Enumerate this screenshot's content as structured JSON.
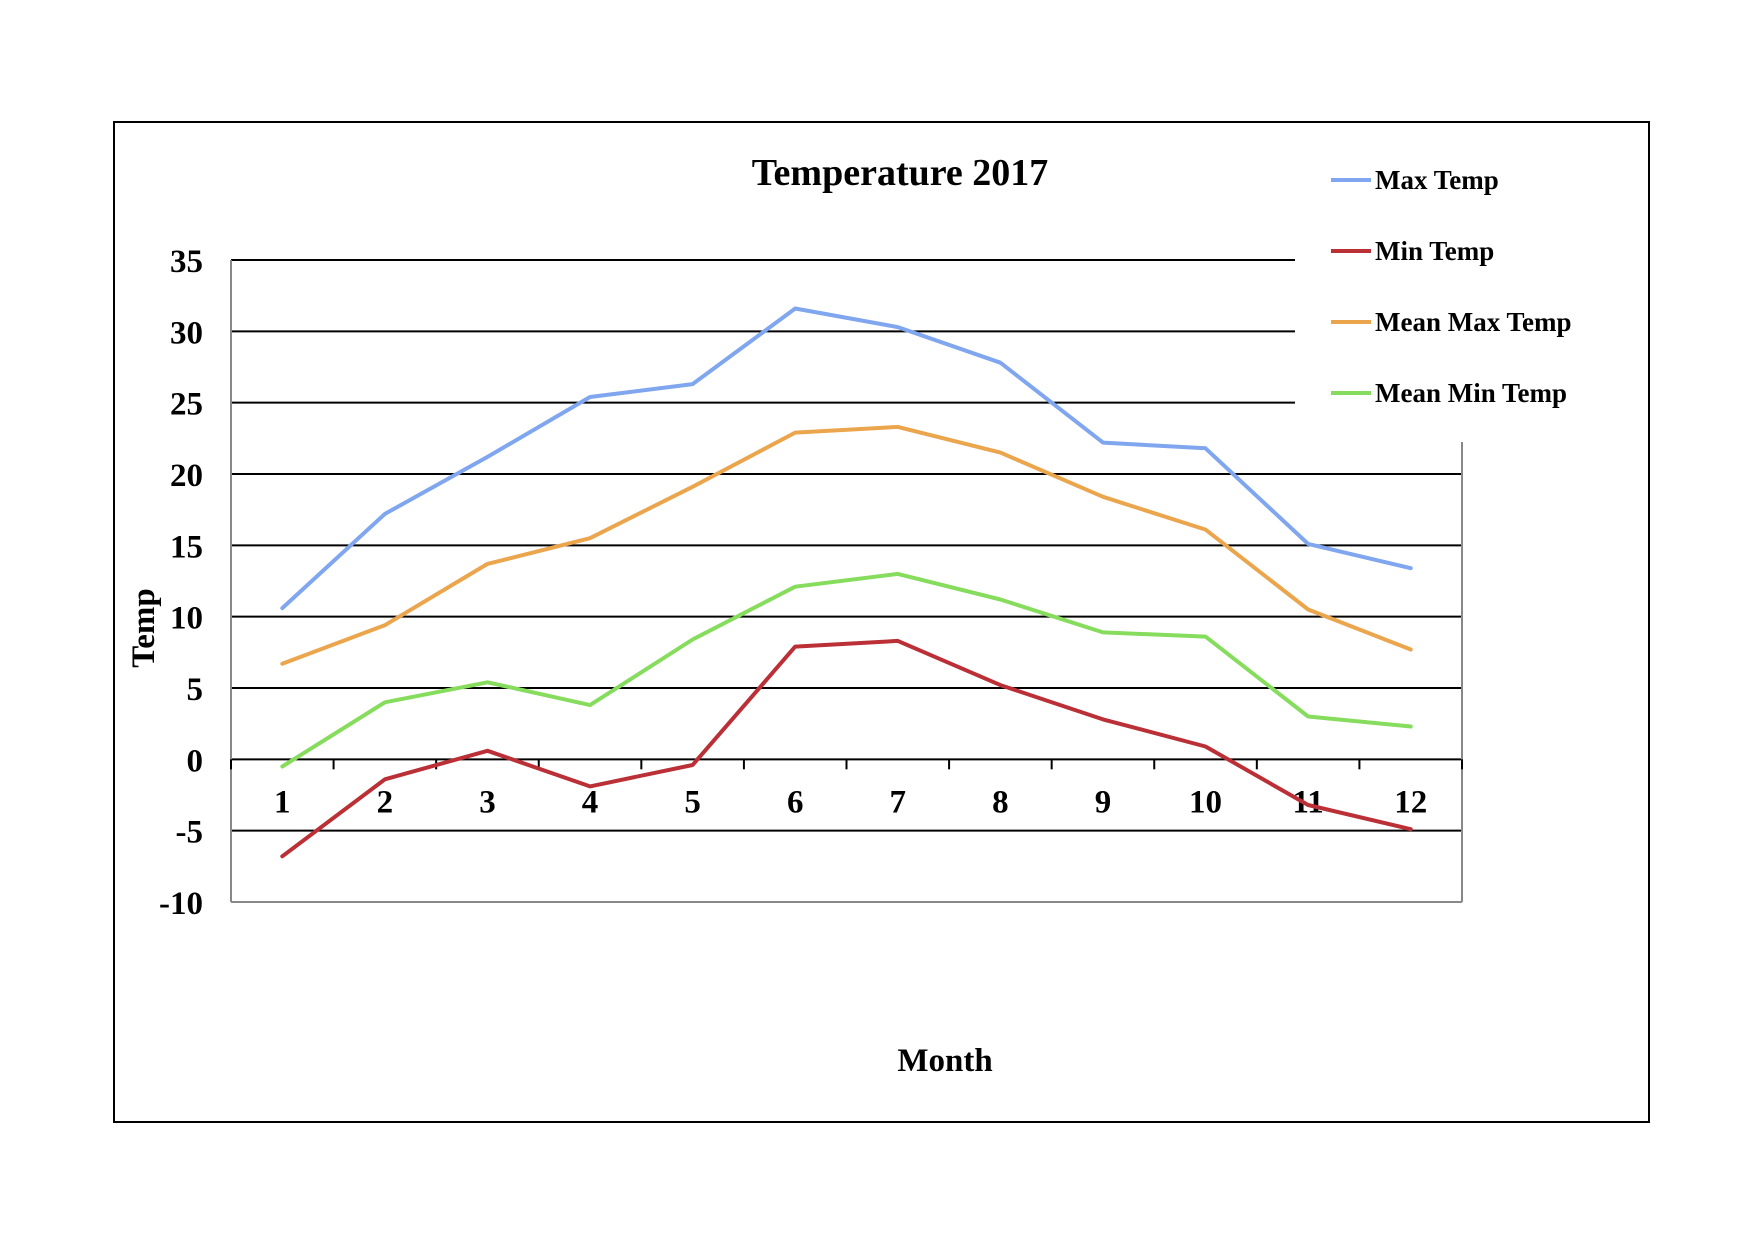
{
  "chart_data": {
    "type": "line",
    "title": "Temperature 2017",
    "xlabel": "Month",
    "ylabel": "Temp",
    "categories": [
      "1",
      "2",
      "3",
      "4",
      "5",
      "6",
      "7",
      "8",
      "9",
      "10",
      "11",
      "12"
    ],
    "ylim": [
      -10,
      35
    ],
    "yticks": [
      35,
      30,
      25,
      20,
      15,
      10,
      5,
      0,
      -5,
      -10
    ],
    "grid": true,
    "legend_position": "top-right",
    "series": [
      {
        "name": "Max Temp",
        "color": "#7fa6ee",
        "values": [
          10.6,
          17.2,
          21.2,
          25.4,
          26.3,
          31.6,
          30.3,
          27.8,
          22.2,
          21.8,
          15.1,
          13.4
        ]
      },
      {
        "name": "Min Temp",
        "color": "#bb2f36",
        "values": [
          -6.8,
          -1.4,
          0.6,
          -1.9,
          -0.4,
          7.9,
          8.3,
          5.2,
          2.8,
          0.9,
          -3.2,
          -4.9
        ]
      },
      {
        "name": "Mean Max Temp",
        "color": "#eba54d",
        "values": [
          6.7,
          9.4,
          13.7,
          15.5,
          19.1,
          22.9,
          23.3,
          21.5,
          18.4,
          16.1,
          10.5,
          7.7
        ]
      },
      {
        "name": "Mean Min Temp",
        "color": "#86dc5c",
        "values": [
          -0.5,
          4.0,
          5.4,
          3.8,
          8.4,
          12.1,
          13.0,
          11.2,
          8.9,
          8.6,
          3.0,
          2.3
        ]
      }
    ]
  }
}
